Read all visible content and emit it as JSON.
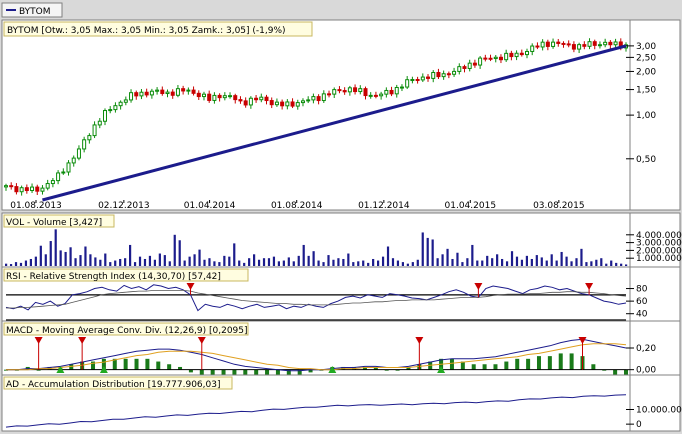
{
  "legend": {
    "symbol_name": "BYTOM"
  },
  "chart_data": [
    {
      "type": "candlestick",
      "panel": "price",
      "title": "BYTOM [Otw.: 3,05  Max.: 3,05  Min.: 3,05  Zamk.: 3,05] (-1,9%)",
      "x_tick_labels": [
        "01.08.2013",
        "02.12.2013",
        "01.04.2014",
        "01.08.2014",
        "01.12.2014",
        "01.04.2015",
        "03.08.2015"
      ],
      "y_tick_labels": [
        "3,00",
        "2,50",
        "2,00",
        "1,50",
        "1,00",
        "0,50"
      ],
      "y_ticks": [
        3.0,
        2.5,
        2.0,
        1.5,
        1.0,
        0.5
      ],
      "y_scale": "log",
      "ylim": [
        0.26,
        3.4
      ],
      "last_close": 3.05,
      "trendline": {
        "start": [
          "2013-08-10",
          0.26
        ],
        "end": [
          "2015-11-05",
          3.0
        ],
        "color": "#1c1c8c"
      },
      "colors": {
        "up": "#0a8c0a",
        "down": "#c80000"
      },
      "x_start": "2013-06-20",
      "x_end": "2015-11-05",
      "close_path": [
        [
          "2013-06-20",
          0.32
        ],
        [
          "2013-07-05",
          0.31
        ],
        [
          "2013-07-20",
          0.31
        ],
        [
          "2013-08-01",
          0.3
        ],
        [
          "2013-08-15",
          0.33
        ],
        [
          "2013-09-01",
          0.38
        ],
        [
          "2013-09-15",
          0.46
        ],
        [
          "2013-10-01",
          0.58
        ],
        [
          "2013-10-15",
          0.75
        ],
        [
          "2013-11-01",
          0.98
        ],
        [
          "2013-11-15",
          1.12
        ],
        [
          "2013-12-02",
          1.28
        ],
        [
          "2013-12-15",
          1.38
        ],
        [
          "2014-01-01",
          1.43
        ],
        [
          "2014-01-15",
          1.45
        ],
        [
          "2014-02-01",
          1.42
        ],
        [
          "2014-02-15",
          1.46
        ],
        [
          "2014-03-01",
          1.48
        ],
        [
          "2014-03-15",
          1.4
        ],
        [
          "2014-04-01",
          1.28
        ],
        [
          "2014-04-15",
          1.38
        ],
        [
          "2014-05-01",
          1.33
        ],
        [
          "2014-05-15",
          1.22
        ],
        [
          "2014-06-01",
          1.28
        ],
        [
          "2014-06-15",
          1.3
        ],
        [
          "2014-07-01",
          1.2
        ],
        [
          "2014-07-15",
          1.17
        ],
        [
          "2014-08-01",
          1.22
        ],
        [
          "2014-08-15",
          1.26
        ],
        [
          "2014-09-01",
          1.33
        ],
        [
          "2014-09-15",
          1.42
        ],
        [
          "2014-10-01",
          1.48
        ],
        [
          "2014-10-15",
          1.52
        ],
        [
          "2014-11-01",
          1.43
        ],
        [
          "2014-11-15",
          1.36
        ],
        [
          "2014-12-01",
          1.4
        ],
        [
          "2014-12-15",
          1.48
        ],
        [
          "2015-01-01",
          1.68
        ],
        [
          "2015-01-15",
          1.78
        ],
        [
          "2015-02-01",
          1.85
        ],
        [
          "2015-02-15",
          1.88
        ],
        [
          "2015-03-01",
          1.95
        ],
        [
          "2015-03-15",
          2.05
        ],
        [
          "2015-04-01",
          2.25
        ],
        [
          "2015-04-15",
          2.4
        ],
        [
          "2015-05-01",
          2.48
        ],
        [
          "2015-05-15",
          2.52
        ],
        [
          "2015-06-01",
          2.58
        ],
        [
          "2015-06-15",
          2.72
        ],
        [
          "2015-07-01",
          2.95
        ],
        [
          "2015-07-15",
          3.15
        ],
        [
          "2015-08-01",
          3.1
        ],
        [
          "2015-08-15",
          3.05
        ],
        [
          "2015-09-01",
          2.95
        ],
        [
          "2015-09-15",
          3.1
        ],
        [
          "2015-10-01",
          3.12
        ],
        [
          "2015-10-15",
          3.08
        ],
        [
          "2015-11-05",
          3.05
        ]
      ]
    },
    {
      "type": "bar",
      "panel": "volume",
      "title": "VOL - Volume [3,427]",
      "y_tick_labels": [
        "4.000.000",
        "3.000.000",
        "2.000.000",
        "1.000.000"
      ],
      "y_ticks": [
        4000000,
        3000000,
        2000000,
        1000000
      ],
      "ylim": [
        0,
        5000000
      ],
      "bar_color": "#1c1c8c",
      "values": [
        300000,
        250000,
        500000,
        400000,
        700000,
        900000,
        1200000,
        2600000,
        1500000,
        3200000,
        4700000,
        2000000,
        1800000,
        2400000,
        1000000,
        1400000,
        2500000,
        1500000,
        1100000,
        800000,
        1600000,
        500000,
        700000,
        900000,
        1000000,
        2700000,
        500000,
        1200000,
        900000,
        1300000,
        800000,
        1600000,
        1400000,
        600000,
        4000000,
        3300000,
        700000,
        1200000,
        1500000,
        2100000,
        800000,
        1000000,
        600000,
        500000,
        1300000,
        1200000,
        2900000,
        700000,
        400000,
        1000000,
        1500000,
        800000,
        1000000,
        1000000,
        1200000,
        600000,
        700000,
        1100000,
        600000,
        1300000,
        2700000,
        1300000,
        1900000,
        700000,
        500000,
        1400000,
        800000,
        1000000,
        900000,
        1600000,
        500000,
        600000,
        700000,
        400000,
        900000,
        700000,
        1200000,
        2500000,
        1000000,
        700000,
        500000,
        300000,
        500000,
        800000,
        4300000,
        3600000,
        3400000,
        1000000,
        1500000,
        2200000,
        900000,
        1700000,
        500000,
        1000000,
        2700000,
        700000,
        700000,
        1300000,
        1000000,
        1500000,
        900000,
        600000,
        1900000,
        1200000,
        800000,
        1300000,
        900000,
        1400000,
        1100000,
        700000,
        1500000,
        700000,
        1800000,
        1200000,
        600000,
        1000000,
        2200000,
        500000,
        600000,
        800000,
        1000000,
        300000,
        700000,
        400000,
        300000,
        200000
      ]
    },
    {
      "type": "line",
      "panel": "rsi",
      "title": "RSI - Relative Strength Index (14,30,70) [57,42]",
      "y_tick_labels": [
        "80",
        "60",
        "40"
      ],
      "y_ticks": [
        80,
        60,
        40
      ],
      "ylim": [
        30,
        92
      ],
      "levels": [
        70,
        30
      ],
      "series": [
        {
          "color": "#1c1c8c",
          "values": [
            50,
            48,
            52,
            46,
            58,
            55,
            60,
            52,
            56,
            70,
            72,
            75,
            80,
            82,
            78,
            76,
            85,
            80,
            83,
            78,
            86,
            84,
            80,
            82,
            78,
            70,
            45,
            55,
            52,
            50,
            55,
            52,
            48,
            52,
            55,
            50,
            52,
            54,
            48,
            52,
            50,
            55,
            52,
            50,
            56,
            60,
            66,
            68,
            65,
            70,
            68,
            66,
            72,
            70,
            68,
            65,
            64,
            62,
            66,
            70,
            75,
            78,
            74,
            68,
            66,
            80,
            84,
            82,
            80,
            76,
            72,
            78,
            80,
            84,
            82,
            78,
            80,
            76,
            72,
            70,
            65,
            60,
            58,
            55,
            57
          ]
        },
        {
          "color": "#555555",
          "values": [
            49,
            49,
            50,
            50,
            51,
            52,
            53,
            54,
            55,
            58,
            61,
            64,
            67,
            70,
            72,
            73,
            74,
            75,
            76,
            76,
            77,
            77,
            77,
            77,
            77,
            76,
            73,
            71,
            69,
            67,
            65,
            63,
            61,
            60,
            59,
            58,
            57,
            56,
            56,
            55,
            55,
            54,
            54,
            54,
            54,
            55,
            56,
            57,
            57,
            58,
            59,
            59,
            60,
            61,
            61,
            62,
            62,
            62,
            62,
            63,
            64,
            65,
            66,
            66,
            66,
            67,
            69,
            70,
            71,
            71,
            71,
            72,
            72,
            73,
            74,
            74,
            75,
            75,
            74,
            74,
            73,
            72,
            70,
            69,
            68
          ]
        }
      ],
      "signal_markers": [
        {
          "index": 25,
          "kind": "sell"
        },
        {
          "index": 64,
          "kind": "sell"
        },
        {
          "index": 79,
          "kind": "sell"
        }
      ]
    },
    {
      "type": "line",
      "panel": "macd",
      "title": "MACD - Moving Average Conv. Div. (12,26,9) [0,2095]",
      "y_tick_labels": [
        "0,20",
        "0,00"
      ],
      "y_ticks": [
        0.2,
        0.0
      ],
      "ylim": [
        -0.04,
        0.32
      ],
      "series": [
        {
          "color": "#1c1c8c",
          "values": [
            0.0,
            0.0,
            0.01,
            0.01,
            0.02,
            0.03,
            0.05,
            0.07,
            0.09,
            0.11,
            0.13,
            0.15,
            0.17,
            0.18,
            0.19,
            0.19,
            0.18,
            0.16,
            0.14,
            0.11,
            0.08,
            0.05,
            0.03,
            0.02,
            0.01,
            0.0,
            -0.01,
            -0.01,
            0.0,
            0.0,
            0.01,
            0.02,
            0.02,
            0.03,
            0.03,
            0.02,
            0.02,
            0.03,
            0.05,
            0.07,
            0.09,
            0.1,
            0.1,
            0.1,
            0.11,
            0.12,
            0.14,
            0.16,
            0.18,
            0.2,
            0.22,
            0.25,
            0.27,
            0.28,
            0.26,
            0.24,
            0.22,
            0.2
          ]
        },
        {
          "color": "#e0a020",
          "values": [
            0.0,
            0.0,
            0.0,
            0.01,
            0.01,
            0.02,
            0.03,
            0.04,
            0.06,
            0.07,
            0.09,
            0.11,
            0.13,
            0.14,
            0.16,
            0.17,
            0.17,
            0.17,
            0.16,
            0.15,
            0.13,
            0.11,
            0.09,
            0.07,
            0.05,
            0.04,
            0.02,
            0.01,
            0.01,
            0.0,
            0.0,
            0.01,
            0.01,
            0.02,
            0.02,
            0.02,
            0.02,
            0.02,
            0.03,
            0.04,
            0.05,
            0.06,
            0.07,
            0.08,
            0.09,
            0.1,
            0.11,
            0.12,
            0.14,
            0.15,
            0.17,
            0.19,
            0.21,
            0.23,
            0.24,
            0.24,
            0.24,
            0.23
          ]
        }
      ],
      "histogram_color": "#1a7a1a",
      "signal_markers": [
        {
          "index": 3,
          "kind": "sell"
        },
        {
          "index": 7,
          "kind": "sell"
        },
        {
          "index": 18,
          "kind": "sell"
        },
        {
          "index": 38,
          "kind": "sell"
        },
        {
          "index": 53,
          "kind": "sell"
        },
        {
          "index": 5,
          "kind": "buy"
        },
        {
          "index": 9,
          "kind": "buy"
        },
        {
          "index": 30,
          "kind": "buy"
        },
        {
          "index": 40,
          "kind": "buy"
        }
      ]
    },
    {
      "type": "line",
      "panel": "ad",
      "title": "AD - Accumulation Distribution [19.777.906,03]",
      "y_tick_labels": [
        "10.000.000",
        "0"
      ],
      "y_ticks": [
        10000000,
        0
      ],
      "ylim": [
        -4000000,
        24000000
      ],
      "series": [
        {
          "color": "#1c1c8c",
          "values": [
            -2000000,
            -1500000,
            -1000000,
            -500000,
            0,
            200000,
            800000,
            1500000,
            2000000,
            2500000,
            3000000,
            3600000,
            4200000,
            4700000,
            5000000,
            5500000,
            6000000,
            6300000,
            6800000,
            7200000,
            7600000,
            8000000,
            8400000,
            8800000,
            9400000,
            10000000,
            10400000,
            10800000,
            11300000,
            11800000,
            12200000,
            12600000,
            12800000,
            13000000,
            13100000,
            13200000,
            13300000,
            13500000,
            13600000,
            13800000,
            14000000,
            14300000,
            14600000,
            14800000,
            15000000,
            15300000,
            15600000,
            16000000,
            16500000,
            17000000,
            17500000,
            17800000,
            18200000,
            18500000,
            18900000,
            19200000,
            19500000,
            19700000,
            19777906
          ]
        }
      ]
    }
  ]
}
